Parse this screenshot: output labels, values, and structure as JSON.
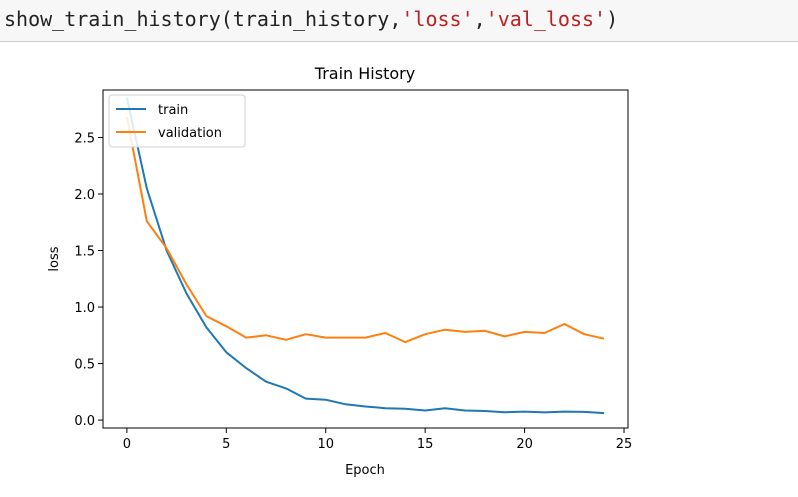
{
  "code": {
    "func": "show_train_history(train_history,",
    "arg1": "'loss'",
    "comma": ",",
    "arg2": "'val_loss'",
    "close": ")"
  },
  "colors": {
    "train": "#1f77b4",
    "validation": "#ff7f0e"
  },
  "chart_data": {
    "type": "line",
    "title": "Train History",
    "xlabel": "Epoch",
    "ylabel": "loss",
    "xlim": [
      -1.2,
      25.2
    ],
    "ylim": [
      -0.07,
      2.92
    ],
    "xticks": [
      0,
      5,
      10,
      15,
      20,
      25
    ],
    "yticks": [
      0.0,
      0.5,
      1.0,
      1.5,
      2.0,
      2.5
    ],
    "ytick_labels": [
      "0.0",
      "0.5",
      "1.0",
      "1.5",
      "2.0",
      "2.5"
    ],
    "legend_loc": "upper left",
    "x": [
      0,
      1,
      2,
      3,
      4,
      5,
      6,
      7,
      8,
      9,
      10,
      11,
      12,
      13,
      14,
      15,
      16,
      17,
      18,
      19,
      20,
      21,
      22,
      23,
      24
    ],
    "series": [
      {
        "name": "train",
        "values": [
          2.85,
          2.05,
          1.5,
          1.12,
          0.82,
          0.6,
          0.46,
          0.34,
          0.28,
          0.19,
          0.18,
          0.14,
          0.12,
          0.105,
          0.1,
          0.085,
          0.105,
          0.085,
          0.08,
          0.07,
          0.075,
          0.068,
          0.075,
          0.072,
          0.062
        ]
      },
      {
        "name": "validation",
        "values": [
          2.68,
          1.76,
          1.52,
          1.2,
          0.92,
          0.83,
          0.73,
          0.75,
          0.71,
          0.76,
          0.73,
          0.73,
          0.73,
          0.77,
          0.69,
          0.76,
          0.8,
          0.78,
          0.79,
          0.74,
          0.78,
          0.77,
          0.85,
          0.76,
          0.72
        ]
      }
    ]
  }
}
